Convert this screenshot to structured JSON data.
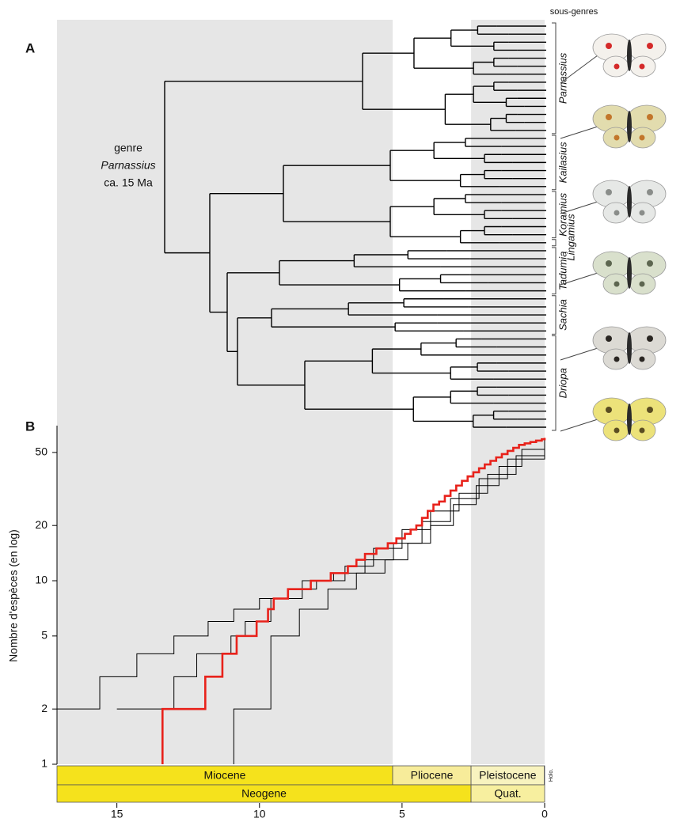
{
  "panel_a": {
    "label": "A",
    "column_title": "sous-genres",
    "genus_note": [
      "genre",
      "Parnassius",
      "ca. 15 Ma"
    ],
    "subgenera": [
      "Parnassius",
      "Kailasius",
      "Koramius",
      "Lingamius",
      "Tadumia",
      "Sachia",
      "Driopa"
    ]
  },
  "chart_data": {
    "type": "step-line",
    "panel_label": "B",
    "y_label": "Nombre d'espèces (en log)",
    "xlim": [
      17.1,
      0
    ],
    "xticks": [
      15,
      10,
      5,
      0
    ],
    "ylim": [
      1,
      70
    ],
    "yticks": [
      1,
      2,
      5,
      10,
      20,
      50
    ],
    "log_scale_y": true,
    "shaded_spans": [
      [
        17.1,
        5.33
      ],
      [
        2.58,
        0
      ]
    ],
    "epochs": [
      {
        "name": "Miocene",
        "start": 17.1,
        "end": 5.33,
        "color": "#f5e21c"
      },
      {
        "name": "Pliocene",
        "start": 5.33,
        "end": 2.58,
        "color": "#f7ec9a"
      },
      {
        "name": "Pleistocene",
        "start": 2.58,
        "end": 0.0117,
        "color": "#f8f3bf"
      },
      {
        "name": "Holo.",
        "start": 0.0117,
        "end": 0,
        "color": "#fdfbe6"
      }
    ],
    "periods": [
      {
        "name": "Neogene",
        "start": 17.1,
        "end": 2.58,
        "color": "#f5e21c"
      },
      {
        "name": "Quat.",
        "start": 2.58,
        "end": 0,
        "color": "#f7ef9f"
      }
    ],
    "series": [
      {
        "color": "#000000",
        "x": [
          17.1,
          15.6,
          14.3,
          13.0,
          11.8,
          10.9,
          10.0,
          9.0,
          8.0,
          7.0,
          6.0,
          5.0,
          4.0,
          3.0,
          2.0,
          1.0,
          0
        ],
        "values": [
          2,
          3,
          4,
          5,
          6,
          7,
          8,
          9,
          10,
          12,
          15,
          19,
          24,
          30,
          38,
          48,
          60
        ]
      },
      {
        "color": "#000000",
        "x": [
          10.9,
          10.9,
          9.6,
          9.6,
          8.6,
          7.6,
          6.6,
          5.6,
          4.8,
          4.0,
          3.2,
          2.4,
          1.6,
          0.8,
          0
        ],
        "values": [
          1,
          2,
          3,
          5,
          7,
          9,
          11,
          13,
          16,
          20,
          26,
          33,
          42,
          52,
          60
        ]
      },
      {
        "color": "#000000",
        "x": [
          15.0,
          13.0,
          12.2,
          11.0,
          10.5,
          9.6,
          8.5,
          7.4,
          6.3,
          5.3,
          4.3,
          3.3,
          2.3,
          1.3,
          0
        ],
        "values": [
          2,
          3,
          4,
          5,
          6,
          8,
          10,
          11,
          13,
          16,
          21,
          28,
          36,
          46,
          60
        ]
      },
      {
        "color": "#e8221b",
        "x": [
          13.4,
          13.4,
          11.9,
          11.3,
          10.8,
          10.1,
          9.7,
          9.5,
          9.0,
          8.2,
          7.5,
          6.9,
          6.6,
          6.3,
          5.9,
          5.5,
          5.2,
          4.9,
          4.7,
          4.5,
          4.3,
          4.1,
          3.9,
          3.7,
          3.5,
          3.3,
          3.1,
          2.9,
          2.7,
          2.5,
          2.3,
          2.1,
          1.9,
          1.7,
          1.5,
          1.3,
          1.1,
          0.9,
          0.7,
          0.5,
          0.3,
          0.1,
          0
        ],
        "values": [
          1,
          2,
          3,
          4,
          5,
          6,
          7,
          8,
          9,
          10,
          11,
          12,
          13,
          14,
          15,
          16,
          17,
          18,
          19,
          20,
          22,
          24,
          26,
          27,
          29,
          31,
          33,
          35,
          37,
          39,
          41,
          43,
          45,
          47,
          49,
          51,
          53,
          55,
          56,
          57,
          58,
          59,
          60
        ]
      }
    ]
  }
}
